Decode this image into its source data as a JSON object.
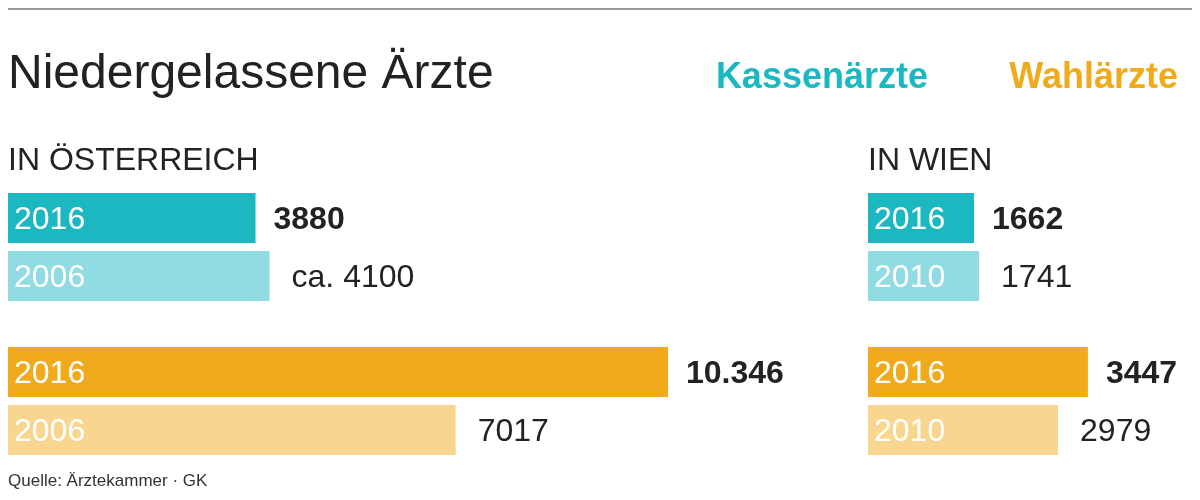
{
  "chart_data": [
    {
      "type": "bar",
      "orientation": "horizontal",
      "title": "Niedergelassene Ärzte",
      "subtitle": "IN ÖSTERREICH",
      "legend": "top right",
      "categories": [
        "2016",
        "2006",
        "2016",
        "2006"
      ],
      "series": [
        {
          "name": "Kassenärzte",
          "color": "#1cb8c2",
          "colors": [
            "#1cb8c2",
            "#90dce2",
            null,
            null
          ],
          "values": [
            3880,
            4100,
            null,
            null
          ],
          "value_labels": [
            "3880",
            "ca. 4100",
            null,
            null
          ]
        },
        {
          "name": "Wahlärzte",
          "color": "#f0aa1c",
          "colors": [
            null,
            null,
            "#f0aa1c",
            "#f8d68f"
          ],
          "values": [
            null,
            null,
            10346,
            7017
          ],
          "value_labels": [
            null,
            null,
            "10.346",
            "7017"
          ]
        }
      ],
      "annotations": [
        "Quelle: Ärztekammer · GK"
      ]
    },
    {
      "type": "bar",
      "orientation": "horizontal",
      "subtitle": "IN WIEN",
      "categories": [
        "2016",
        "2010",
        "2016",
        "2010"
      ],
      "series": [
        {
          "colors": [
            "#1cb8c2",
            "#90dce2",
            null,
            null
          ],
          "values": [
            1662,
            1741,
            null,
            null
          ],
          "value_labels": [
            "1662",
            "1741",
            null,
            null
          ]
        },
        {
          "colors": [
            null,
            null,
            "#f0aa1c",
            "#f8d68f"
          ],
          "values": [
            null,
            null,
            3447,
            2979
          ],
          "value_labels": [
            null,
            null,
            "3447",
            "2979"
          ]
        }
      ]
    }
  ]
}
